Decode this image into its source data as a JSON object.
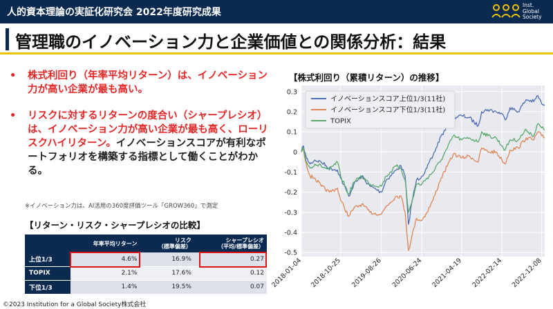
{
  "header": {
    "title": "人的資本理論の実証化研究会 2022年度研究成果",
    "logo_text": "Inst.\nGlobal\nSociety"
  },
  "page": {
    "title": "管理職のイノベーション力と企業価値との関係分析：結果"
  },
  "bullets": {
    "b1": "株式利回り（年率平均リターン）は、イノベーション力が高い企業が最も高い。",
    "b2_red": "リスクに対するリターンの度合い（シャープレシオ）は、イノベーション力が高い企業が最も高く、ローリスクハイリターン。",
    "b2_rest": "イノベーションスコアが有利なポートフォリオを構築する指標として働くことがわかる。"
  },
  "note": "※イノベーション力は、AI活用の360度評価ツール「GROW360」で測定",
  "table": {
    "title": "【リターン・リスク・シャープレシオの比較】",
    "headers": [
      "",
      "年率平均リターン",
      "リスク\n（標準偏差）",
      "シャープレシオ\n（平均/標準偏差）"
    ],
    "rows": [
      {
        "label": "上位1/3",
        "ret": "4.6%",
        "risk": "16.9%",
        "sharpe": "0.27"
      },
      {
        "label": "TOPIX",
        "ret": "2.1%",
        "risk": "17.6%",
        "sharpe": "0.12"
      },
      {
        "label": "下位1/3",
        "ret": "1.4%",
        "risk": "19.5%",
        "sharpe": "0.07"
      }
    ],
    "highlight_color": "#e01010"
  },
  "copyright": "©2023  Institution for a Global Society株式会社",
  "chart_data": {
    "type": "line",
    "title": "【株式利回り（累積リターン）の推移】",
    "xlabel": "",
    "ylabel": "",
    "x_ticks": [
      "2018-01-04",
      "2018-10-25",
      "2019-08-26",
      "2020-06-24",
      "2021-04-19",
      "2022-02-14",
      "2022-12-08"
    ],
    "x_range": [
      "2018-01-04",
      "2022-12-31"
    ],
    "ylim": [
      -0.52,
      0.33
    ],
    "y_ticks": [
      0.3,
      0.2,
      0.1,
      0.0,
      -0.1,
      -0.2,
      -0.3,
      -0.4,
      -0.5
    ],
    "grid": true,
    "background": "#e8eaf0",
    "legend_position": "top-left",
    "series": [
      {
        "name": "イノベーションスコア上位1/3(11社)",
        "color": "#4c6bb1",
        "points": [
          [
            "2018-01-04",
            0.0
          ],
          [
            "2018-01-20",
            0.03
          ],
          [
            "2018-02-10",
            -0.03
          ],
          [
            "2018-03-10",
            -0.06
          ],
          [
            "2018-04-15",
            -0.04
          ],
          [
            "2018-06-01",
            -0.05
          ],
          [
            "2018-08-01",
            -0.08
          ],
          [
            "2018-10-01",
            -0.09
          ],
          [
            "2018-10-25",
            -0.13
          ],
          [
            "2018-12-25",
            -0.22
          ],
          [
            "2019-02-01",
            -0.16
          ],
          [
            "2019-04-01",
            -0.12
          ],
          [
            "2019-06-01",
            -0.17
          ],
          [
            "2019-08-26",
            -0.2
          ],
          [
            "2019-10-01",
            -0.14
          ],
          [
            "2019-12-15",
            -0.09
          ],
          [
            "2020-01-20",
            -0.07
          ],
          [
            "2020-02-20",
            -0.12
          ],
          [
            "2020-03-16",
            -0.36
          ],
          [
            "2020-04-10",
            -0.25
          ],
          [
            "2020-05-15",
            -0.14
          ],
          [
            "2020-06-24",
            -0.12
          ],
          [
            "2020-08-01",
            -0.08
          ],
          [
            "2020-09-15",
            -0.02
          ],
          [
            "2020-11-15",
            0.08
          ],
          [
            "2021-01-01",
            0.12
          ],
          [
            "2021-02-15",
            0.17
          ],
          [
            "2021-04-19",
            0.18
          ],
          [
            "2021-06-15",
            0.17
          ],
          [
            "2021-08-20",
            0.13
          ],
          [
            "2021-09-15",
            0.2
          ],
          [
            "2021-11-01",
            0.21
          ],
          [
            "2022-01-01",
            0.2
          ],
          [
            "2022-02-14",
            0.19
          ],
          [
            "2022-03-10",
            0.16
          ],
          [
            "2022-04-15",
            0.22
          ],
          [
            "2022-06-15",
            0.2
          ],
          [
            "2022-08-15",
            0.26
          ],
          [
            "2022-10-10",
            0.25
          ],
          [
            "2022-11-10",
            0.28
          ],
          [
            "2022-12-08",
            0.24
          ],
          [
            "2022-12-31",
            0.23
          ]
        ]
      },
      {
        "name": "イノベーションスコア下位1/3(11社)",
        "color": "#dd8452",
        "points": [
          [
            "2018-01-04",
            0.0
          ],
          [
            "2018-01-20",
            0.01
          ],
          [
            "2018-02-10",
            -0.06
          ],
          [
            "2018-03-10",
            -0.12
          ],
          [
            "2018-04-15",
            -0.13
          ],
          [
            "2018-06-01",
            -0.17
          ],
          [
            "2018-08-01",
            -0.2
          ],
          [
            "2018-10-01",
            -0.18
          ],
          [
            "2018-10-25",
            -0.24
          ],
          [
            "2018-12-25",
            -0.32
          ],
          [
            "2019-02-01",
            -0.28
          ],
          [
            "2019-04-01",
            -0.26
          ],
          [
            "2019-06-01",
            -0.3
          ],
          [
            "2019-08-26",
            -0.31
          ],
          [
            "2019-10-01",
            -0.27
          ],
          [
            "2019-12-15",
            -0.22
          ],
          [
            "2020-01-20",
            -0.22
          ],
          [
            "2020-02-20",
            -0.3
          ],
          [
            "2020-03-16",
            -0.49
          ],
          [
            "2020-04-10",
            -0.42
          ],
          [
            "2020-05-15",
            -0.33
          ],
          [
            "2020-06-24",
            -0.34
          ],
          [
            "2020-08-01",
            -0.3
          ],
          [
            "2020-09-15",
            -0.24
          ],
          [
            "2020-11-15",
            -0.13
          ],
          [
            "2021-01-01",
            -0.07
          ],
          [
            "2021-02-15",
            -0.01
          ],
          [
            "2021-04-19",
            -0.03
          ],
          [
            "2021-06-15",
            -0.02
          ],
          [
            "2021-08-20",
            -0.05
          ],
          [
            "2021-09-15",
            0.02
          ],
          [
            "2021-11-01",
            0.0
          ],
          [
            "2022-01-01",
            0.0
          ],
          [
            "2022-02-14",
            -0.04
          ],
          [
            "2022-03-10",
            -0.06
          ],
          [
            "2022-04-15",
            0.01
          ],
          [
            "2022-06-15",
            0.02
          ],
          [
            "2022-08-15",
            0.07
          ],
          [
            "2022-10-10",
            0.06
          ],
          [
            "2022-11-10",
            0.1
          ],
          [
            "2022-12-08",
            0.08
          ],
          [
            "2022-12-31",
            0.07
          ]
        ]
      },
      {
        "name": "TOPIX",
        "color": "#55a868",
        "points": [
          [
            "2018-01-04",
            0.0
          ],
          [
            "2018-01-20",
            0.02
          ],
          [
            "2018-02-10",
            -0.05
          ],
          [
            "2018-03-10",
            -0.08
          ],
          [
            "2018-04-15",
            -0.06
          ],
          [
            "2018-06-01",
            -0.07
          ],
          [
            "2018-08-01",
            -0.09
          ],
          [
            "2018-10-01",
            -0.05
          ],
          [
            "2018-10-25",
            -0.12
          ],
          [
            "2018-12-25",
            -0.21
          ],
          [
            "2019-02-01",
            -0.15
          ],
          [
            "2019-04-01",
            -0.12
          ],
          [
            "2019-06-01",
            -0.16
          ],
          [
            "2019-08-26",
            -0.17
          ],
          [
            "2019-10-01",
            -0.12
          ],
          [
            "2019-12-15",
            -0.07
          ],
          [
            "2020-01-20",
            -0.08
          ],
          [
            "2020-02-20",
            -0.14
          ],
          [
            "2020-03-16",
            -0.3
          ],
          [
            "2020-04-10",
            -0.25
          ],
          [
            "2020-05-15",
            -0.16
          ],
          [
            "2020-06-24",
            -0.16
          ],
          [
            "2020-08-01",
            -0.13
          ],
          [
            "2020-09-15",
            -0.1
          ],
          [
            "2020-11-15",
            -0.04
          ],
          [
            "2021-01-01",
            0.02
          ],
          [
            "2021-02-15",
            0.08
          ],
          [
            "2021-04-19",
            0.06
          ],
          [
            "2021-06-15",
            0.07
          ],
          [
            "2021-08-20",
            0.05
          ],
          [
            "2021-09-15",
            0.1
          ],
          [
            "2021-11-01",
            0.08
          ],
          [
            "2022-01-01",
            0.07
          ],
          [
            "2022-02-14",
            0.03
          ],
          [
            "2022-03-10",
            0.01
          ],
          [
            "2022-04-15",
            0.06
          ],
          [
            "2022-06-15",
            0.06
          ],
          [
            "2022-08-15",
            0.11
          ],
          [
            "2022-10-10",
            0.08
          ],
          [
            "2022-11-10",
            0.14
          ],
          [
            "2022-12-08",
            0.12
          ],
          [
            "2022-12-31",
            0.11
          ]
        ]
      }
    ]
  }
}
